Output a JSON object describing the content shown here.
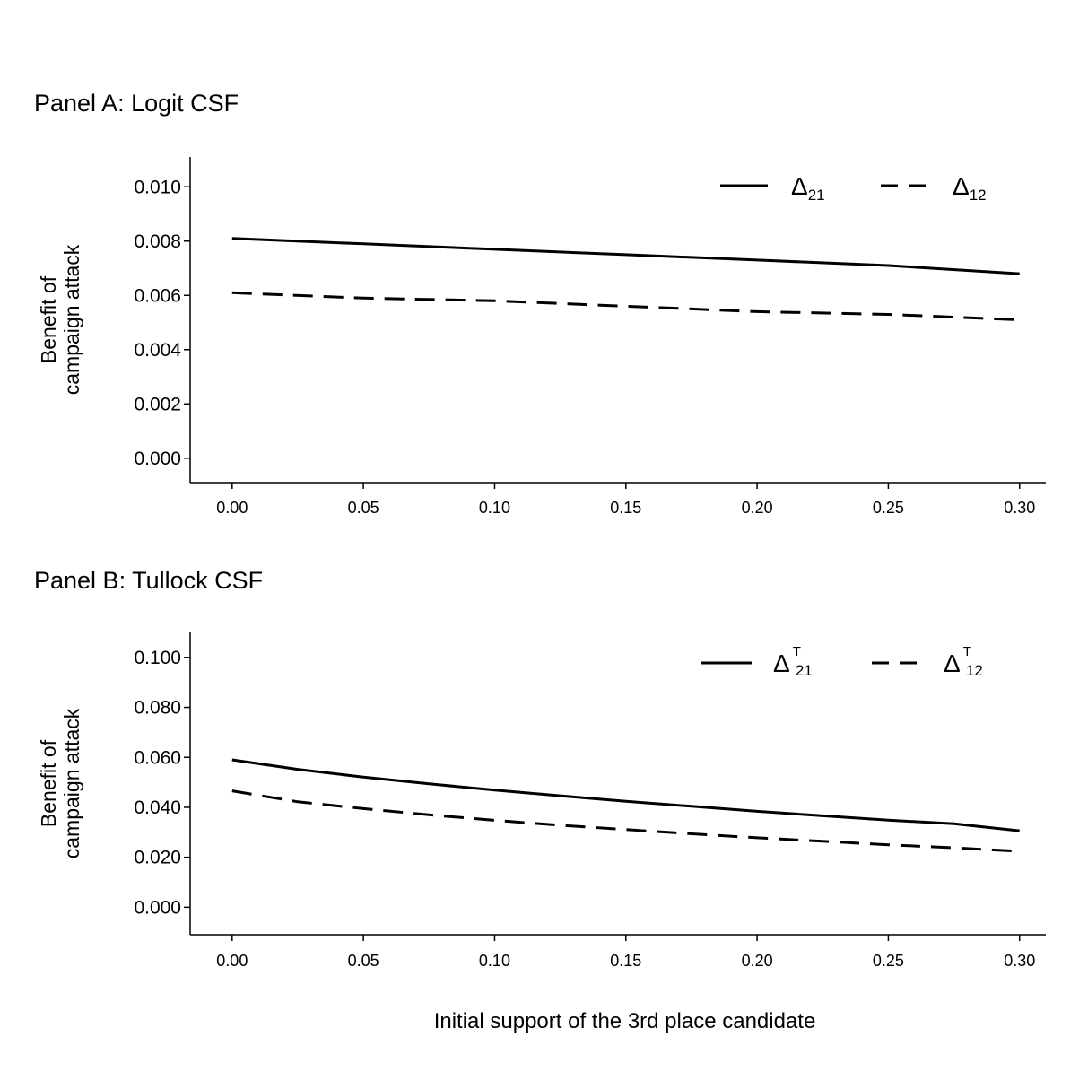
{
  "x_axis_label": "Initial support of the 3rd place candidate",
  "chart_data": [
    {
      "type": "line",
      "title": "Panel A: Logit CSF",
      "ylabel_line1": "Benefit of",
      "ylabel_line2": "campaign attack",
      "xlabel": "Initial support of the 3rd place candidate",
      "x_ticks": [
        0.0,
        0.05,
        0.1,
        0.15,
        0.2,
        0.25,
        0.3
      ],
      "x_tick_labels": [
        "0.00",
        "0.05",
        "0.10",
        "0.15",
        "0.20",
        "0.25",
        "0.30"
      ],
      "y_ticks": [
        0.0,
        0.002,
        0.004,
        0.006,
        0.008,
        0.01
      ],
      "y_tick_labels": [
        "0.000",
        "0.002",
        "0.004",
        "0.006",
        "0.008",
        "0.010"
      ],
      "xlim": [
        -0.016,
        0.31
      ],
      "ylim": [
        -0.0009,
        0.0111
      ],
      "legend_position": "top-right",
      "grid": false,
      "x": [
        0.0,
        0.05,
        0.1,
        0.15,
        0.2,
        0.25,
        0.3
      ],
      "series": [
        {
          "name": "Δ21",
          "symbol": "Δ",
          "subscript": "21",
          "superscript": "",
          "line_style": "solid",
          "values": [
            0.0081,
            0.0079,
            0.0077,
            0.0075,
            0.0073,
            0.0071,
            0.0068
          ]
        },
        {
          "name": "Δ12",
          "symbol": "Δ",
          "subscript": "12",
          "superscript": "",
          "line_style": "dashed",
          "values": [
            0.0061,
            0.0059,
            0.0058,
            0.0056,
            0.0054,
            0.0053,
            0.0051
          ]
        }
      ]
    },
    {
      "type": "line",
      "title": "Panel B: Tullock CSF",
      "ylabel_line1": "Benefit of",
      "ylabel_line2": "campaign attack",
      "xlabel": "Initial support of the 3rd place candidate",
      "x_ticks": [
        0.0,
        0.05,
        0.1,
        0.15,
        0.2,
        0.25,
        0.3
      ],
      "x_tick_labels": [
        "0.00",
        "0.05",
        "0.10",
        "0.15",
        "0.20",
        "0.25",
        "0.30"
      ],
      "y_ticks": [
        0.0,
        0.02,
        0.04,
        0.06,
        0.08,
        0.1
      ],
      "y_tick_labels": [
        "0.000",
        "0.020",
        "0.040",
        "0.060",
        "0.080",
        "0.100"
      ],
      "xlim": [
        -0.016,
        0.31
      ],
      "ylim": [
        -0.011,
        0.11
      ],
      "legend_position": "top-right",
      "grid": false,
      "x": [
        0.0,
        0.025,
        0.05,
        0.075,
        0.1,
        0.125,
        0.15,
        0.175,
        0.2,
        0.225,
        0.25,
        0.275,
        0.3
      ],
      "series": [
        {
          "name": "ΔT21",
          "symbol": "Δ",
          "subscript": "21",
          "superscript": "T",
          "line_style": "solid",
          "values": [
            0.059,
            0.0552,
            0.0521,
            0.0494,
            0.0469,
            0.0446,
            0.0424,
            0.0404,
            0.0384,
            0.0366,
            0.0349,
            0.0334,
            0.0306
          ]
        },
        {
          "name": "ΔT12",
          "symbol": "Δ",
          "subscript": "12",
          "superscript": "T",
          "line_style": "dashed",
          "values": [
            0.0466,
            0.0422,
            0.0395,
            0.037,
            0.0348,
            0.0328,
            0.0311,
            0.0294,
            0.0278,
            0.0264,
            0.025,
            0.0238,
            0.0224
          ]
        }
      ]
    }
  ]
}
